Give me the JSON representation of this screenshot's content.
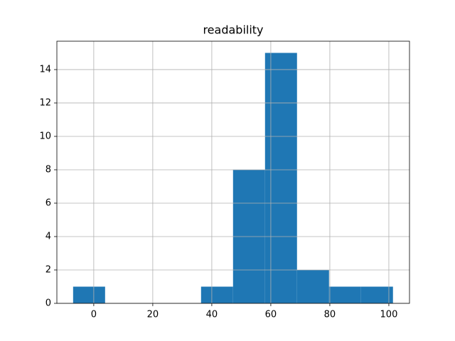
{
  "chart_data": {
    "type": "histogram",
    "title": "readability",
    "bins": [
      -7,
      3.84,
      14.68,
      25.52,
      36.36,
      47.2,
      58.04,
      68.88,
      79.72,
      90.56,
      101.4
    ],
    "values": [
      1,
      0,
      0,
      0,
      1,
      8,
      15,
      2,
      1,
      1
    ],
    "color": "#1f77b4",
    "xlim": [
      -12.5,
      107
    ],
    "xticks": [
      0,
      20,
      40,
      60,
      80,
      100
    ],
    "ylim": [
      0,
      15.7
    ],
    "yticks": [
      0,
      2,
      4,
      6,
      8,
      10,
      12,
      14
    ],
    "grid": true
  }
}
